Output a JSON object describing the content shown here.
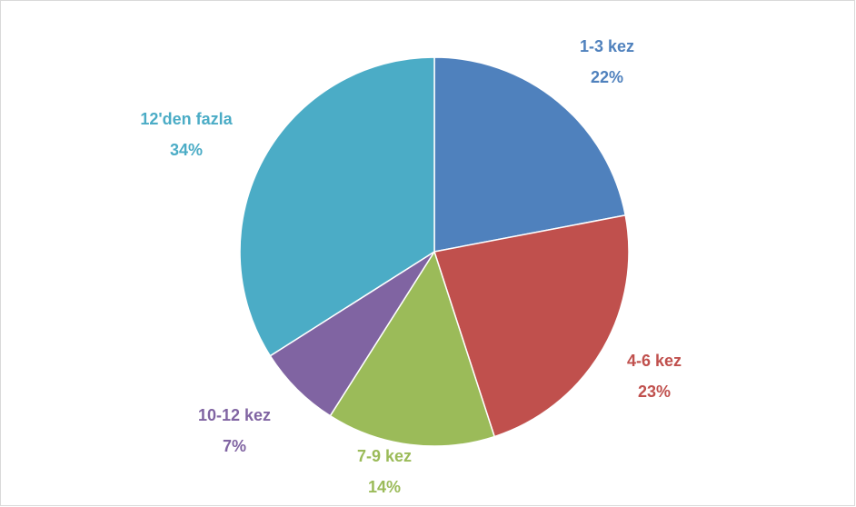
{
  "chart_data": {
    "type": "pie",
    "categories": [
      "1-3 kez",
      "4-6 kez",
      "7-9 kez",
      "10-12 kez",
      "12'den fazla"
    ],
    "values": [
      22,
      23,
      14,
      7,
      34
    ],
    "value_labels": [
      "22%",
      "23%",
      "14%",
      "7%",
      "34%"
    ],
    "colors": [
      "#4f81bd",
      "#c0504d",
      "#9bbb59",
      "#8064a2",
      "#4bacc6"
    ]
  }
}
